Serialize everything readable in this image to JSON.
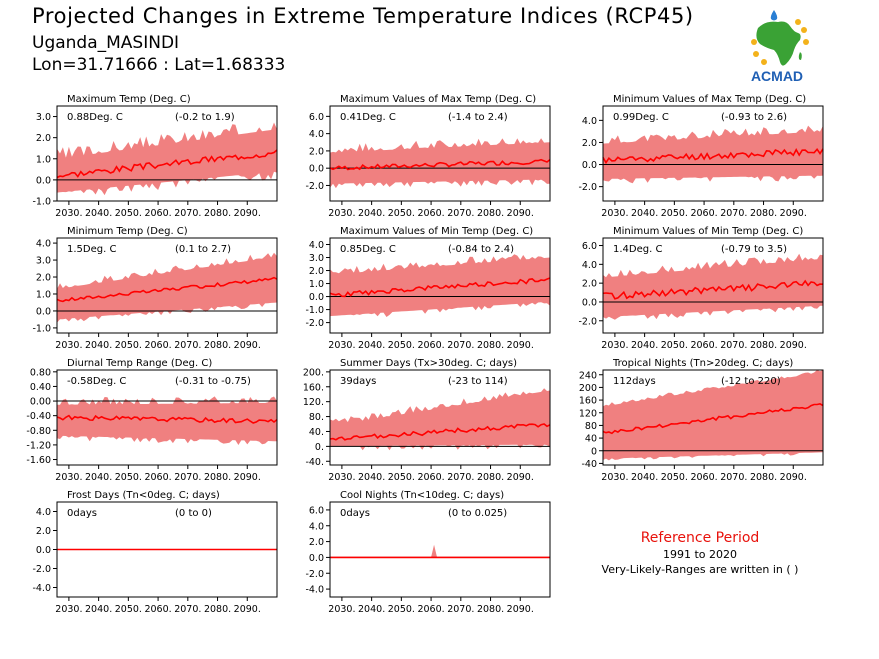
{
  "header": {
    "title": "Projected Changes in Extreme Temperature Indices (RCP45)",
    "station": "Uganda_MASINDI",
    "coords": "Lon=31.71666 : Lat=1.68333"
  },
  "logo": {
    "text": "ACMAD"
  },
  "reference": {
    "title": "Reference Period",
    "period": "1991 to 2020",
    "note": "Very-Likely-Ranges are written in ( )"
  },
  "colors": {
    "band": "#f08080",
    "line": "#ff0000",
    "zero": "#000000",
    "logo_text": "#1f5fb4",
    "logo_africa": "#3aa235"
  },
  "x_ticks": [
    "2030.",
    "2040.",
    "2050.",
    "2060.",
    "2070.",
    "2080.",
    "2090."
  ],
  "chart_data": [
    {
      "type": "area",
      "title": "Maximum Temp (Deg. C)",
      "stat": "0.88Deg. C",
      "range": "(-0.2 to 1.9)",
      "xlim": [
        2026,
        2100
      ],
      "ylim": [
        -1.0,
        3.5
      ],
      "yticks": [
        "-1.0",
        "0.0",
        "1.0",
        "2.0",
        "3.0"
      ],
      "tickvals": [
        -1,
        0,
        1,
        2,
        3
      ],
      "start": [
        0.2,
        -0.6,
        1.0
      ],
      "end": [
        1.3,
        0.4,
        2.4
      ],
      "noise": 0.15,
      "spike": 0.9,
      "seed": 3
    },
    {
      "type": "area",
      "title": "Maximum Values of Max Temp (Deg. C)",
      "stat": "0.41Deg. C",
      "range": "(-1.4 to 2.4)",
      "xlim": [
        2026,
        2100
      ],
      "ylim": [
        -3.8,
        7.2
      ],
      "yticks": [
        "-2.0",
        "0.0",
        "2.0",
        "4.0",
        "6.0"
      ],
      "tickvals": [
        -2,
        0,
        2,
        4,
        6
      ],
      "start": [
        0.0,
        -1.8,
        1.8
      ],
      "end": [
        0.8,
        -1.3,
        3.0
      ],
      "noise": 0.25,
      "spike": 1.6,
      "seed": 7
    },
    {
      "type": "area",
      "title": "Minimum Values of Max Temp (Deg. C)",
      "stat": "0.99Deg. C",
      "range": "(-0.93 to 2.6)",
      "xlim": [
        2026,
        2100
      ],
      "ylim": [
        -3.3,
        5.3
      ],
      "yticks": [
        "-2.0",
        "0.0",
        "2.0",
        "4.0"
      ],
      "tickvals": [
        -2,
        0,
        2,
        4
      ],
      "start": [
        0.4,
        -1.3,
        1.9
      ],
      "end": [
        1.2,
        -1.0,
        3.0
      ],
      "noise": 0.3,
      "spike": 1.2,
      "seed": 11
    },
    {
      "type": "area",
      "title": "Minimum Temp (Deg. C)",
      "stat": "1.5Deg. C",
      "range": "(0.1 to 2.7)",
      "xlim": [
        2026,
        2100
      ],
      "ylim": [
        -1.3,
        4.3
      ],
      "yticks": [
        "-1.0",
        "0.0",
        "1.0",
        "2.0",
        "3.0",
        "4.0"
      ],
      "tickvals": [
        -1,
        0,
        1,
        2,
        3,
        4
      ],
      "start": [
        0.6,
        -0.5,
        1.3
      ],
      "end": [
        1.9,
        0.5,
        3.2
      ],
      "noise": 0.1,
      "spike": 0.6,
      "seed": 17
    },
    {
      "type": "area",
      "title": "Maximum Values of Min Temp (Deg. C)",
      "stat": "0.85Deg. C",
      "range": "(-0.84 to 2.4)",
      "xlim": [
        2026,
        2100
      ],
      "ylim": [
        -2.8,
        4.5
      ],
      "yticks": [
        "-2.0",
        "-1.0",
        "0.0",
        "1.0",
        "2.0",
        "3.0",
        "4.0"
      ],
      "tickvals": [
        -2,
        -1,
        0,
        1,
        2,
        3,
        4
      ],
      "start": [
        0.1,
        -1.5,
        1.7
      ],
      "end": [
        1.3,
        -0.4,
        3.0
      ],
      "noise": 0.18,
      "spike": 0.9,
      "seed": 23
    },
    {
      "type": "area",
      "title": "Minimum Values of Min Temp (Deg. C)",
      "stat": "1.4Deg. C",
      "range": "(-0.79 to 3.5)",
      "xlim": [
        2026,
        2100
      ],
      "ylim": [
        -3.3,
        6.8
      ],
      "yticks": [
        "-2.0",
        "0.0",
        "2.0",
        "4.0",
        "6.0"
      ],
      "tickvals": [
        -2,
        0,
        2,
        4,
        6
      ],
      "start": [
        0.6,
        -1.6,
        2.6
      ],
      "end": [
        2.0,
        -0.4,
        4.6
      ],
      "noise": 0.35,
      "spike": 1.3,
      "seed": 29
    },
    {
      "type": "area",
      "title": "Diurnal Temp Range (Deg. C)",
      "stat": "-0.58Deg. C",
      "range": "(-0.31 to -0.75)",
      "xlim": [
        2026,
        2100
      ],
      "ylim": [
        -1.75,
        0.85
      ],
      "yticks": [
        "-1.60",
        "-1.20",
        "-0.80",
        "-0.40",
        "0.00",
        "0.40",
        "0.80"
      ],
      "tickvals": [
        -1.6,
        -1.2,
        -0.8,
        -0.4,
        0,
        0.4,
        0.8
      ],
      "start": [
        -0.45,
        -0.95,
        -0.1
      ],
      "end": [
        -0.55,
        -1.1,
        -0.05
      ],
      "noise": 0.06,
      "spike": 0.35,
      "seed": 31
    },
    {
      "type": "area",
      "title": "Summer Days (Tx>30deg. C; days)",
      "stat": "39days",
      "range": "(-23 to 114)",
      "xlim": [
        2026,
        2100
      ],
      "ylim": [
        -50,
        205
      ],
      "yticks": [
        "-40.",
        "0.",
        "40.",
        "80.",
        "120.",
        "160.",
        "200."
      ],
      "tickvals": [
        -40,
        0,
        40,
        80,
        120,
        160,
        200
      ],
      "start": [
        18,
        0,
        55
      ],
      "end": [
        60,
        5,
        150
      ],
      "noise": 6,
      "spike": 30,
      "seed": 37
    },
    {
      "type": "area",
      "title": "Tropical Nights (Tn>20deg. C; days)",
      "stat": "112days",
      "range": "(-12 to 220)",
      "xlim": [
        2026,
        2100
      ],
      "ylim": [
        -45,
        255
      ],
      "yticks": [
        "-40",
        "0",
        "40",
        "80",
        "120",
        "160",
        "200",
        "240"
      ],
      "tickvals": [
        -40,
        0,
        40,
        80,
        120,
        160,
        200,
        240
      ],
      "start": [
        55,
        -25,
        140
      ],
      "end": [
        145,
        -5,
        248
      ],
      "noise": 6,
      "spike": 18,
      "seed": 41
    },
    {
      "type": "area",
      "title": "Frost Days (Tn<0deg. C; days)",
      "stat": "0days",
      "range": "(0 to 0)",
      "xlim": [
        2026,
        2100
      ],
      "ylim": [
        -5.0,
        5.0
      ],
      "yticks": [
        "-4.0",
        "-2.0",
        "0.0",
        "2.0",
        "4.0"
      ],
      "tickvals": [
        -4,
        -2,
        0,
        2,
        4
      ],
      "start": [
        0,
        0,
        0
      ],
      "end": [
        0,
        0,
        0
      ],
      "noise": 0,
      "spike": 0,
      "seed": 1
    },
    {
      "type": "area",
      "title": "Cool Nights (Tn<10deg. C; days)",
      "stat": "0days",
      "range": "(0 to 0.025)",
      "xlim": [
        2026,
        2100
      ],
      "ylim": [
        -5.0,
        7.0
      ],
      "yticks": [
        "-4.0",
        "-2.0",
        "0.0",
        "2.0",
        "4.0",
        "6.0"
      ],
      "tickvals": [
        -4,
        -2,
        0,
        2,
        4,
        6
      ],
      "start": [
        0,
        0,
        0
      ],
      "end": [
        0,
        0,
        0
      ],
      "noise": 0,
      "spike": 0,
      "seed": 2,
      "peak": {
        "x": 2061,
        "y": 1.6
      }
    }
  ]
}
